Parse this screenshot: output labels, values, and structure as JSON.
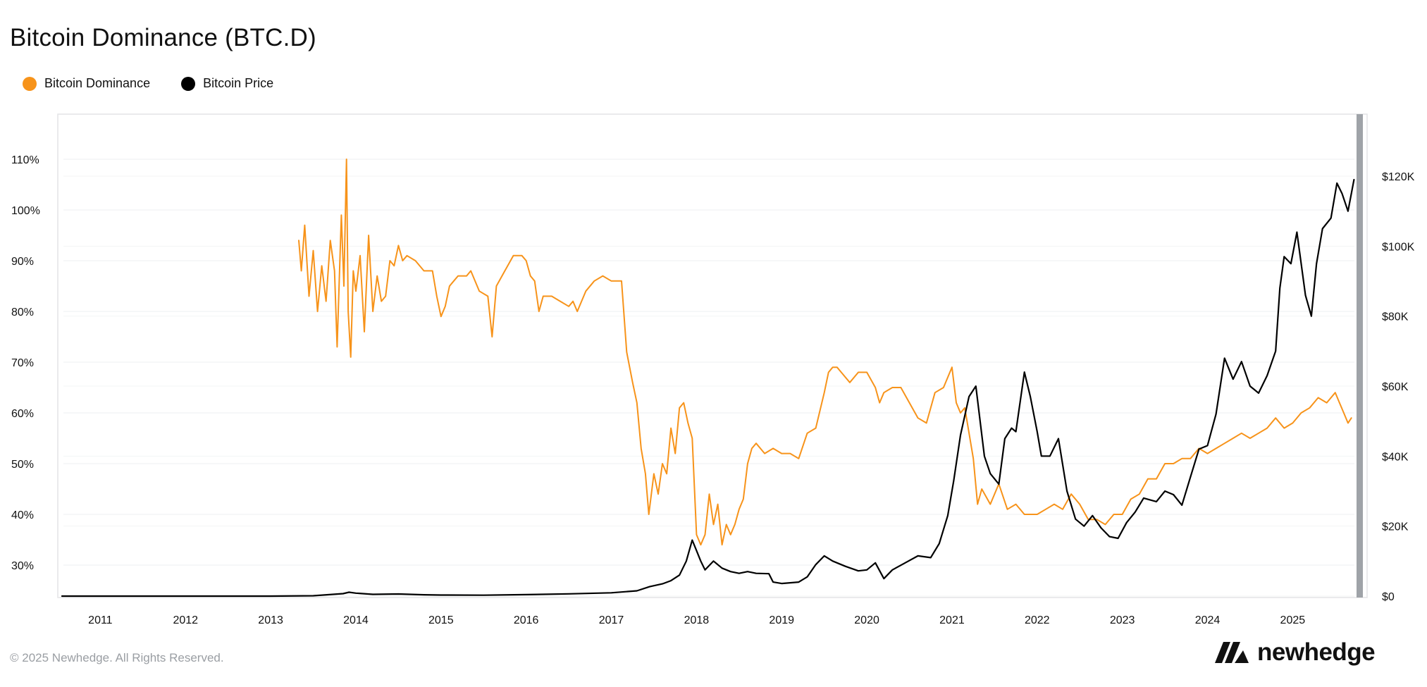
{
  "header": {
    "title": "Bitcoin Dominance (BTC.D)"
  },
  "legend": [
    {
      "label": "Bitcoin Dominance",
      "color": "#f7931a"
    },
    {
      "label": "Bitcoin Price",
      "color": "#000000"
    }
  ],
  "footer": {
    "copyright": "© 2025 Newhedge. All Rights Reserved.",
    "brand": "newhedge"
  },
  "chart_data": {
    "type": "line",
    "title": "Bitcoin Dominance (BTC.D)",
    "grid": true,
    "legend_position": "top-left",
    "x_axis": {
      "ticks": [
        "2011",
        "2012",
        "2013",
        "2014",
        "2015",
        "2016",
        "2017",
        "2018",
        "2019",
        "2020",
        "2021",
        "2022",
        "2023",
        "2024",
        "2025"
      ],
      "range": [
        2010.55,
        2025.75
      ]
    },
    "y_left": {
      "ticks": [
        "110%",
        "100%",
        "90%",
        "80%",
        "70%",
        "60%",
        "50%",
        "40%",
        "30%"
      ],
      "range": [
        25,
        115
      ]
    },
    "y_right": {
      "ticks": [
        "$120K",
        "$100K",
        "$80K",
        "$60K",
        "$40K",
        "$20K",
        "$0"
      ],
      "range": [
        0,
        140000
      ]
    },
    "series": [
      {
        "name": "Bitcoin Dominance",
        "axis": "left",
        "color": "#f7931a",
        "points": [
          [
            2013.33,
            94
          ],
          [
            2013.36,
            88
          ],
          [
            2013.4,
            97
          ],
          [
            2013.45,
            83
          ],
          [
            2013.5,
            92
          ],
          [
            2013.55,
            80
          ],
          [
            2013.6,
            89
          ],
          [
            2013.65,
            82
          ],
          [
            2013.7,
            94
          ],
          [
            2013.75,
            88
          ],
          [
            2013.78,
            73
          ],
          [
            2013.83,
            99
          ],
          [
            2013.86,
            85
          ],
          [
            2013.89,
            110
          ],
          [
            2013.91,
            80
          ],
          [
            2013.94,
            71
          ],
          [
            2013.97,
            88
          ],
          [
            2014.0,
            84
          ],
          [
            2014.05,
            91
          ],
          [
            2014.1,
            76
          ],
          [
            2014.15,
            95
          ],
          [
            2014.2,
            80
          ],
          [
            2014.25,
            87
          ],
          [
            2014.3,
            82
          ],
          [
            2014.35,
            83
          ],
          [
            2014.4,
            90
          ],
          [
            2014.45,
            89
          ],
          [
            2014.5,
            93
          ],
          [
            2014.55,
            90
          ],
          [
            2014.6,
            91
          ],
          [
            2014.7,
            90
          ],
          [
            2014.8,
            88
          ],
          [
            2014.9,
            88
          ],
          [
            2014.95,
            83
          ],
          [
            2015.0,
            79
          ],
          [
            2015.05,
            81
          ],
          [
            2015.1,
            85
          ],
          [
            2015.15,
            86
          ],
          [
            2015.2,
            87
          ],
          [
            2015.3,
            87
          ],
          [
            2015.35,
            88
          ],
          [
            2015.45,
            84
          ],
          [
            2015.55,
            83
          ],
          [
            2015.6,
            75
          ],
          [
            2015.65,
            85
          ],
          [
            2015.75,
            88
          ],
          [
            2015.85,
            91
          ],
          [
            2015.95,
            91
          ],
          [
            2016.0,
            90
          ],
          [
            2016.05,
            87
          ],
          [
            2016.1,
            86
          ],
          [
            2016.15,
            80
          ],
          [
            2016.2,
            83
          ],
          [
            2016.3,
            83
          ],
          [
            2016.4,
            82
          ],
          [
            2016.5,
            81
          ],
          [
            2016.55,
            82
          ],
          [
            2016.6,
            80
          ],
          [
            2016.7,
            84
          ],
          [
            2016.8,
            86
          ],
          [
            2016.9,
            87
          ],
          [
            2017.0,
            86
          ],
          [
            2017.05,
            86
          ],
          [
            2017.12,
            86
          ],
          [
            2017.18,
            72
          ],
          [
            2017.25,
            66
          ],
          [
            2017.3,
            62
          ],
          [
            2017.35,
            53
          ],
          [
            2017.4,
            48
          ],
          [
            2017.44,
            40
          ],
          [
            2017.5,
            48
          ],
          [
            2017.55,
            44
          ],
          [
            2017.6,
            50
          ],
          [
            2017.65,
            48
          ],
          [
            2017.7,
            57
          ],
          [
            2017.75,
            52
          ],
          [
            2017.8,
            61
          ],
          [
            2017.85,
            62
          ],
          [
            2017.9,
            58
          ],
          [
            2017.95,
            55
          ],
          [
            2018.0,
            36
          ],
          [
            2018.05,
            34
          ],
          [
            2018.1,
            36
          ],
          [
            2018.15,
            44
          ],
          [
            2018.2,
            38
          ],
          [
            2018.25,
            42
          ],
          [
            2018.3,
            34
          ],
          [
            2018.35,
            38
          ],
          [
            2018.4,
            36
          ],
          [
            2018.45,
            38
          ],
          [
            2018.5,
            41
          ],
          [
            2018.55,
            43
          ],
          [
            2018.6,
            50
          ],
          [
            2018.65,
            53
          ],
          [
            2018.7,
            54
          ],
          [
            2018.8,
            52
          ],
          [
            2018.9,
            53
          ],
          [
            2019.0,
            52
          ],
          [
            2019.1,
            52
          ],
          [
            2019.2,
            51
          ],
          [
            2019.3,
            56
          ],
          [
            2019.4,
            57
          ],
          [
            2019.5,
            64
          ],
          [
            2019.55,
            68
          ],
          [
            2019.6,
            69
          ],
          [
            2019.65,
            69
          ],
          [
            2019.7,
            68
          ],
          [
            2019.8,
            66
          ],
          [
            2019.9,
            68
          ],
          [
            2020.0,
            68
          ],
          [
            2020.1,
            65
          ],
          [
            2020.15,
            62
          ],
          [
            2020.2,
            64
          ],
          [
            2020.3,
            65
          ],
          [
            2020.4,
            65
          ],
          [
            2020.5,
            62
          ],
          [
            2020.6,
            59
          ],
          [
            2020.7,
            58
          ],
          [
            2020.8,
            64
          ],
          [
            2020.9,
            65
          ],
          [
            2021.0,
            69
          ],
          [
            2021.05,
            62
          ],
          [
            2021.1,
            60
          ],
          [
            2021.15,
            61
          ],
          [
            2021.25,
            51
          ],
          [
            2021.3,
            42
          ],
          [
            2021.35,
            45
          ],
          [
            2021.45,
            42
          ],
          [
            2021.55,
            46
          ],
          [
            2021.65,
            41
          ],
          [
            2021.75,
            42
          ],
          [
            2021.85,
            40
          ],
          [
            2021.95,
            40
          ],
          [
            2022.0,
            40
          ],
          [
            2022.1,
            41
          ],
          [
            2022.2,
            42
          ],
          [
            2022.3,
            41
          ],
          [
            2022.4,
            44
          ],
          [
            2022.5,
            42
          ],
          [
            2022.6,
            39
          ],
          [
            2022.7,
            39
          ],
          [
            2022.8,
            38
          ],
          [
            2022.9,
            40
          ],
          [
            2023.0,
            40
          ],
          [
            2023.1,
            43
          ],
          [
            2023.2,
            44
          ],
          [
            2023.3,
            47
          ],
          [
            2023.4,
            47
          ],
          [
            2023.5,
            50
          ],
          [
            2023.6,
            50
          ],
          [
            2023.7,
            51
          ],
          [
            2023.8,
            51
          ],
          [
            2023.9,
            53
          ],
          [
            2024.0,
            52
          ],
          [
            2024.1,
            53
          ],
          [
            2024.2,
            54
          ],
          [
            2024.3,
            55
          ],
          [
            2024.4,
            56
          ],
          [
            2024.5,
            55
          ],
          [
            2024.6,
            56
          ],
          [
            2024.7,
            57
          ],
          [
            2024.8,
            59
          ],
          [
            2024.9,
            57
          ],
          [
            2025.0,
            58
          ],
          [
            2025.1,
            60
          ],
          [
            2025.2,
            61
          ],
          [
            2025.3,
            63
          ],
          [
            2025.4,
            62
          ],
          [
            2025.5,
            64
          ],
          [
            2025.55,
            62
          ],
          [
            2025.6,
            60
          ],
          [
            2025.65,
            58
          ],
          [
            2025.69,
            59
          ]
        ]
      },
      {
        "name": "Bitcoin Price",
        "axis": "right",
        "color": "#000000",
        "points": [
          [
            2010.55,
            0
          ],
          [
            2011.4,
            0
          ],
          [
            2012.5,
            0
          ],
          [
            2013.0,
            0
          ],
          [
            2013.5,
            100
          ],
          [
            2013.85,
            700
          ],
          [
            2013.92,
            1100
          ],
          [
            2014.0,
            850
          ],
          [
            2014.2,
            500
          ],
          [
            2014.5,
            600
          ],
          [
            2014.8,
            380
          ],
          [
            2015.0,
            300
          ],
          [
            2015.5,
            260
          ],
          [
            2016.0,
            420
          ],
          [
            2016.5,
            650
          ],
          [
            2017.0,
            950
          ],
          [
            2017.3,
            1500
          ],
          [
            2017.45,
            2700
          ],
          [
            2017.6,
            3500
          ],
          [
            2017.7,
            4400
          ],
          [
            2017.8,
            6000
          ],
          [
            2017.88,
            10000
          ],
          [
            2017.95,
            16000
          ],
          [
            2018.0,
            13000
          ],
          [
            2018.05,
            10000
          ],
          [
            2018.1,
            7500
          ],
          [
            2018.2,
            10000
          ],
          [
            2018.3,
            8000
          ],
          [
            2018.4,
            7000
          ],
          [
            2018.5,
            6500
          ],
          [
            2018.6,
            7000
          ],
          [
            2018.7,
            6500
          ],
          [
            2018.85,
            6400
          ],
          [
            2018.9,
            4000
          ],
          [
            2019.0,
            3600
          ],
          [
            2019.2,
            4000
          ],
          [
            2019.3,
            5500
          ],
          [
            2019.4,
            9000
          ],
          [
            2019.5,
            11500
          ],
          [
            2019.6,
            10000
          ],
          [
            2019.75,
            8500
          ],
          [
            2019.9,
            7200
          ],
          [
            2020.0,
            7500
          ],
          [
            2020.1,
            9500
          ],
          [
            2020.2,
            5000
          ],
          [
            2020.3,
            7500
          ],
          [
            2020.45,
            9500
          ],
          [
            2020.6,
            11500
          ],
          [
            2020.75,
            11000
          ],
          [
            2020.85,
            15000
          ],
          [
            2020.95,
            23000
          ],
          [
            2021.02,
            33000
          ],
          [
            2021.1,
            46000
          ],
          [
            2021.2,
            57000
          ],
          [
            2021.28,
            60000
          ],
          [
            2021.38,
            40000
          ],
          [
            2021.45,
            35000
          ],
          [
            2021.55,
            32000
          ],
          [
            2021.62,
            45000
          ],
          [
            2021.7,
            48000
          ],
          [
            2021.75,
            47000
          ],
          [
            2021.85,
            64000
          ],
          [
            2021.92,
            57000
          ],
          [
            2022.0,
            47000
          ],
          [
            2022.05,
            40000
          ],
          [
            2022.15,
            40000
          ],
          [
            2022.25,
            45000
          ],
          [
            2022.35,
            30000
          ],
          [
            2022.45,
            22000
          ],
          [
            2022.55,
            20000
          ],
          [
            2022.65,
            23000
          ],
          [
            2022.75,
            19500
          ],
          [
            2022.85,
            17000
          ],
          [
            2022.95,
            16500
          ],
          [
            2023.05,
            21000
          ],
          [
            2023.15,
            24000
          ],
          [
            2023.25,
            28000
          ],
          [
            2023.4,
            27000
          ],
          [
            2023.5,
            30000
          ],
          [
            2023.6,
            29000
          ],
          [
            2023.7,
            26000
          ],
          [
            2023.8,
            34000
          ],
          [
            2023.9,
            42000
          ],
          [
            2024.0,
            43000
          ],
          [
            2024.1,
            52000
          ],
          [
            2024.2,
            68000
          ],
          [
            2024.3,
            62000
          ],
          [
            2024.4,
            67000
          ],
          [
            2024.5,
            60000
          ],
          [
            2024.6,
            58000
          ],
          [
            2024.7,
            63000
          ],
          [
            2024.8,
            70000
          ],
          [
            2024.85,
            88000
          ],
          [
            2024.9,
            97000
          ],
          [
            2024.98,
            95000
          ],
          [
            2025.05,
            104000
          ],
          [
            2025.15,
            86000
          ],
          [
            2025.22,
            80000
          ],
          [
            2025.28,
            95000
          ],
          [
            2025.35,
            105000
          ],
          [
            2025.45,
            108000
          ],
          [
            2025.52,
            118000
          ],
          [
            2025.58,
            115000
          ],
          [
            2025.65,
            110000
          ],
          [
            2025.72,
            119000
          ]
        ]
      }
    ]
  }
}
